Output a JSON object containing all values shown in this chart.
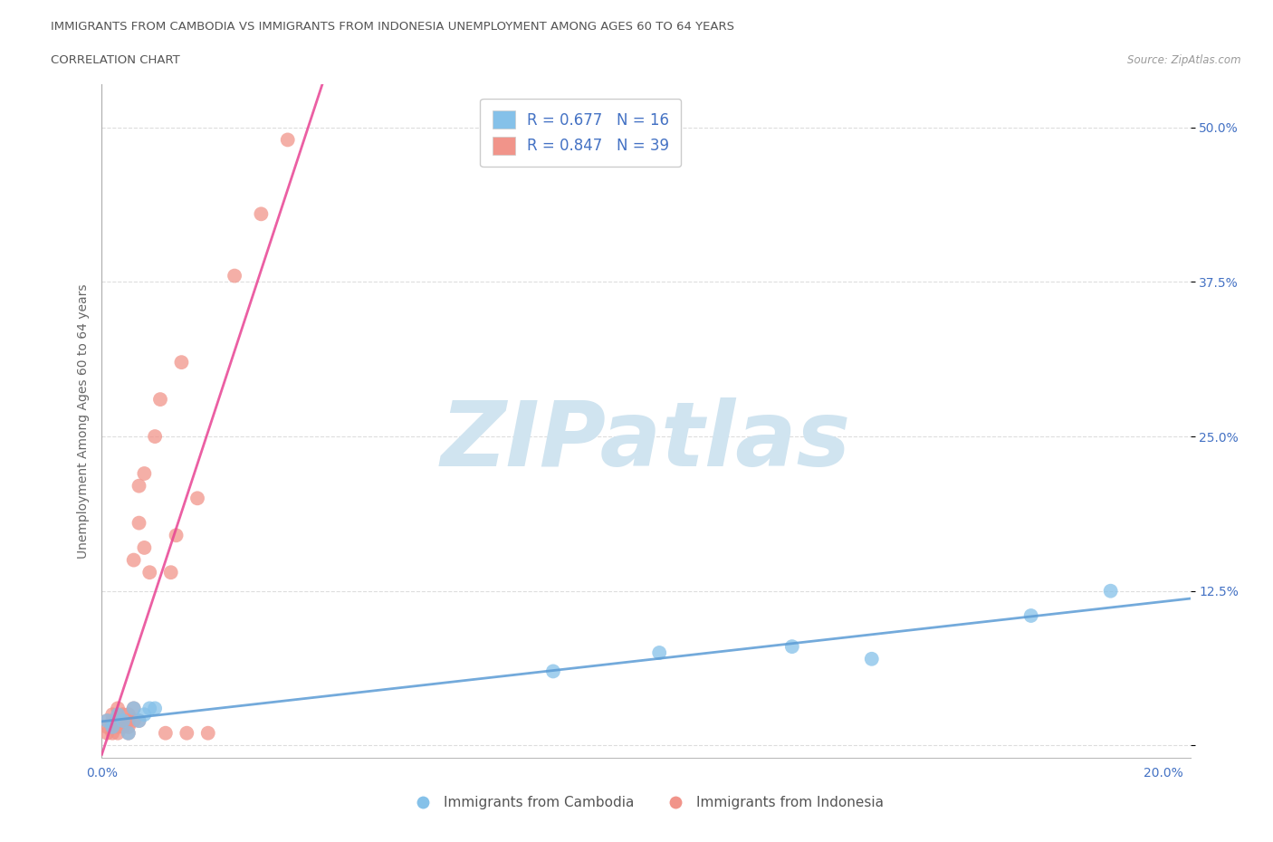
{
  "title_line1": "IMMIGRANTS FROM CAMBODIA VS IMMIGRANTS FROM INDONESIA UNEMPLOYMENT AMONG AGES 60 TO 64 YEARS",
  "title_line2": "CORRELATION CHART",
  "source_text": "Source: ZipAtlas.com",
  "ylabel": "Unemployment Among Ages 60 to 64 years",
  "xlim": [
    0.0,
    0.205
  ],
  "ylim": [
    -0.01,
    0.535
  ],
  "xticks": [
    0.0,
    0.05,
    0.1,
    0.15,
    0.2
  ],
  "xtick_labels": [
    "0.0%",
    "",
    "",
    "",
    "20.0%"
  ],
  "yticks": [
    0.0,
    0.125,
    0.25,
    0.375,
    0.5
  ],
  "ytick_labels": [
    "",
    "12.5%",
    "25.0%",
    "37.5%",
    "50.0%"
  ],
  "cambodia_color": "#85C1E9",
  "indonesia_color": "#F1948A",
  "trend_cambodia_color": "#5B9BD5",
  "trend_indonesia_color": "#E84393",
  "R_cambodia": 0.677,
  "N_cambodia": 16,
  "R_indonesia": 0.847,
  "N_indonesia": 39,
  "watermark": "ZIPatlas",
  "watermark_color": "#D0E4F0",
  "cambodia_scatter_x": [
    0.001,
    0.002,
    0.003,
    0.004,
    0.005,
    0.006,
    0.007,
    0.008,
    0.009,
    0.01,
    0.085,
    0.105,
    0.13,
    0.145,
    0.175,
    0.19
  ],
  "cambodia_scatter_y": [
    0.02,
    0.015,
    0.025,
    0.02,
    0.01,
    0.03,
    0.02,
    0.025,
    0.03,
    0.03,
    0.06,
    0.075,
    0.08,
    0.07,
    0.105,
    0.125
  ],
  "indonesia_scatter_x": [
    0.001,
    0.001,
    0.001,
    0.002,
    0.002,
    0.002,
    0.002,
    0.003,
    0.003,
    0.003,
    0.003,
    0.004,
    0.004,
    0.004,
    0.005,
    0.005,
    0.005,
    0.005,
    0.006,
    0.006,
    0.006,
    0.007,
    0.007,
    0.007,
    0.008,
    0.008,
    0.009,
    0.01,
    0.011,
    0.012,
    0.013,
    0.014,
    0.015,
    0.016,
    0.018,
    0.02,
    0.025,
    0.03,
    0.035
  ],
  "indonesia_scatter_y": [
    0.02,
    0.01,
    0.015,
    0.015,
    0.025,
    0.01,
    0.02,
    0.015,
    0.02,
    0.03,
    0.01,
    0.02,
    0.025,
    0.015,
    0.015,
    0.02,
    0.025,
    0.01,
    0.02,
    0.03,
    0.15,
    0.02,
    0.18,
    0.21,
    0.16,
    0.22,
    0.14,
    0.25,
    0.28,
    0.01,
    0.14,
    0.17,
    0.31,
    0.01,
    0.2,
    0.01,
    0.38,
    0.43,
    0.49
  ]
}
